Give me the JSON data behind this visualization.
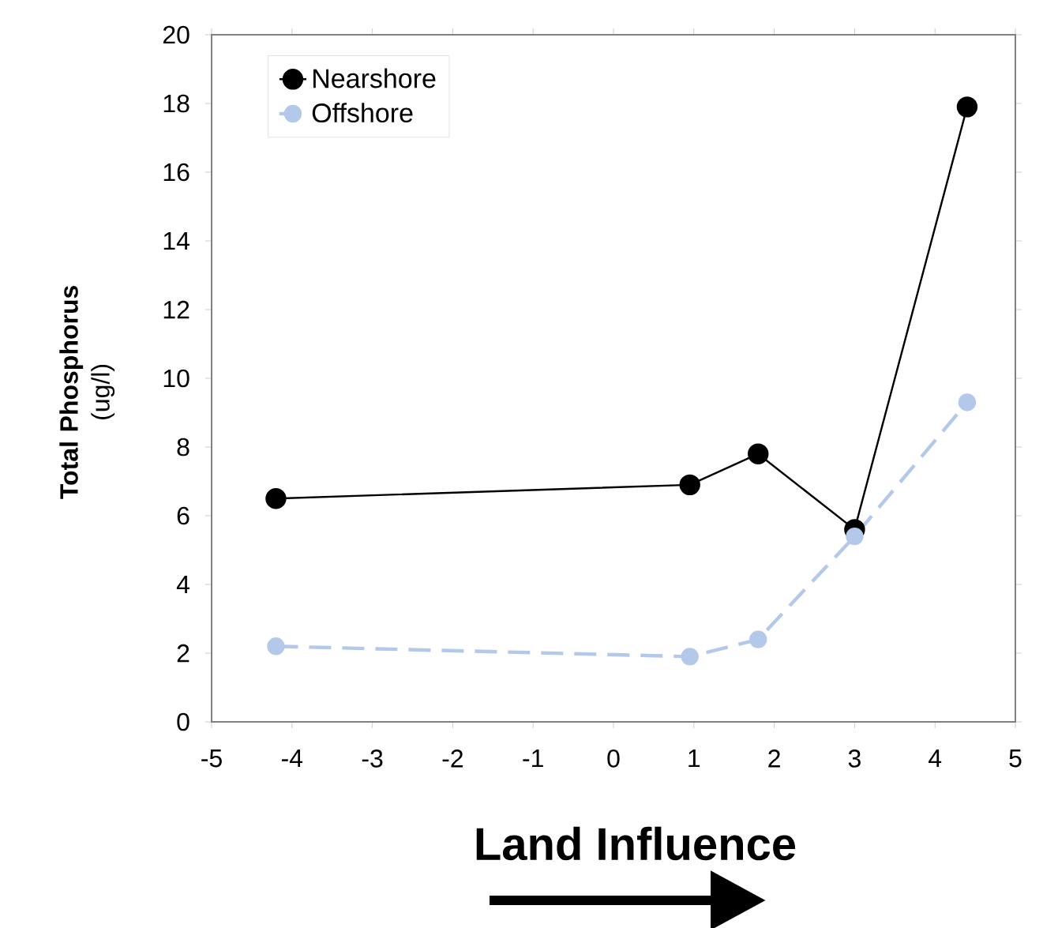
{
  "chart_data": {
    "type": "line",
    "xlabel": "Land Influence",
    "ylabel": "**Total Phosphorus** (ug/l)",
    "xlim": [
      -5,
      5
    ],
    "xticks": [
      -5,
      -4,
      -3,
      -2,
      -1,
      0,
      1,
      2,
      3,
      4,
      5
    ],
    "ylim": [
      0,
      20
    ],
    "yticks": [
      0,
      2,
      4,
      6,
      8,
      10,
      12,
      14,
      16,
      18,
      20
    ],
    "grid": false,
    "legend": "top left",
    "marker": "circle",
    "series": [
      {
        "name": "Nearshore",
        "color": "#000000",
        "line_style": "solid",
        "x": [
          -4.2,
          0.95,
          1.8,
          3.0,
          4.4
        ],
        "values": [
          6.5,
          6.9,
          7.8,
          5.6,
          17.9
        ]
      },
      {
        "name": "Offshore",
        "color": "#b4c8ea",
        "line_style": "dashed",
        "x": [
          -4.2,
          0.95,
          1.8,
          3.0,
          4.4
        ],
        "values": [
          2.2,
          1.9,
          2.4,
          5.4,
          9.3
        ]
      }
    ]
  }
}
